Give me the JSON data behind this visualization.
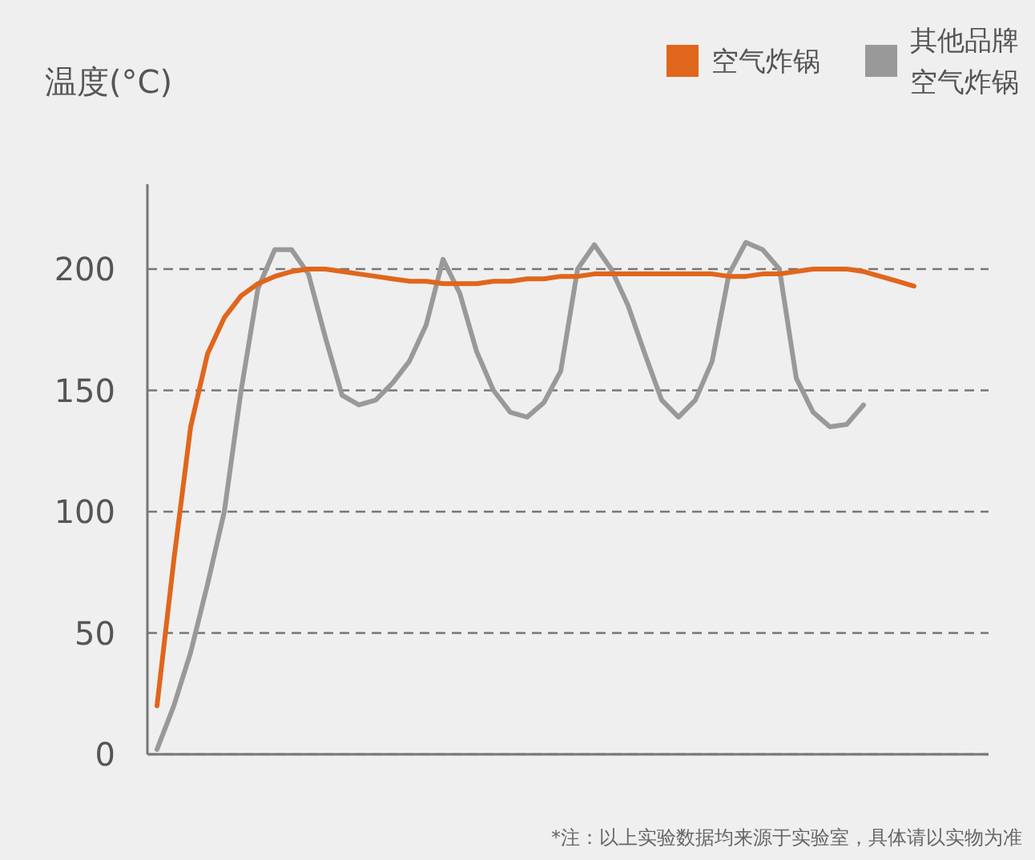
{
  "chart_data": {
    "type": "line",
    "ylabel": "温度(°C)",
    "categories": [
      null,
      null,
      null,
      null,
      null,
      null,
      null,
      null,
      null,
      null,
      null,
      null,
      null,
      null,
      null,
      null,
      null,
      null,
      null,
      null,
      null,
      null,
      null,
      null,
      null,
      null,
      null,
      null,
      null,
      null,
      null,
      null,
      null,
      null,
      null,
      null,
      null,
      null,
      null,
      null,
      null,
      null,
      null,
      null,
      null,
      null
    ],
    "series": [
      {
        "name": "其他品牌空气炸锅",
        "color": "#999999",
        "values": [
          2,
          20,
          42,
          70,
          100,
          150,
          192,
          208,
          208,
          198,
          172,
          148,
          144,
          146,
          153,
          162,
          177,
          204,
          190,
          166,
          150,
          141,
          139,
          145,
          158,
          200,
          210,
          200,
          185,
          165,
          146,
          139,
          146,
          162,
          198,
          211,
          208,
          200,
          155,
          141,
          135,
          136,
          144,
          null,
          null,
          null
        ]
      },
      {
        "name": "空气炸锅",
        "color": "#e0661c",
        "values": [
          20,
          80,
          135,
          165,
          180,
          189,
          194,
          197,
          199,
          200,
          200,
          199,
          198,
          197,
          196,
          195,
          195,
          194,
          194,
          194,
          195,
          195,
          196,
          196,
          197,
          197,
          198,
          198,
          198,
          198,
          198,
          198,
          198,
          198,
          197,
          197,
          198,
          198,
          199,
          200,
          200,
          200,
          199,
          197,
          195,
          193
        ]
      }
    ],
    "ylim": [
      0,
      235
    ],
    "yticks": [
      0,
      50,
      100,
      150,
      200
    ],
    "grid": "y",
    "legend": "top right",
    "line_style": "solid",
    "marker": "none",
    "annotations": [
      "*注：以上实验数据均来源于实验室，具体请以实物为准"
    ]
  }
}
